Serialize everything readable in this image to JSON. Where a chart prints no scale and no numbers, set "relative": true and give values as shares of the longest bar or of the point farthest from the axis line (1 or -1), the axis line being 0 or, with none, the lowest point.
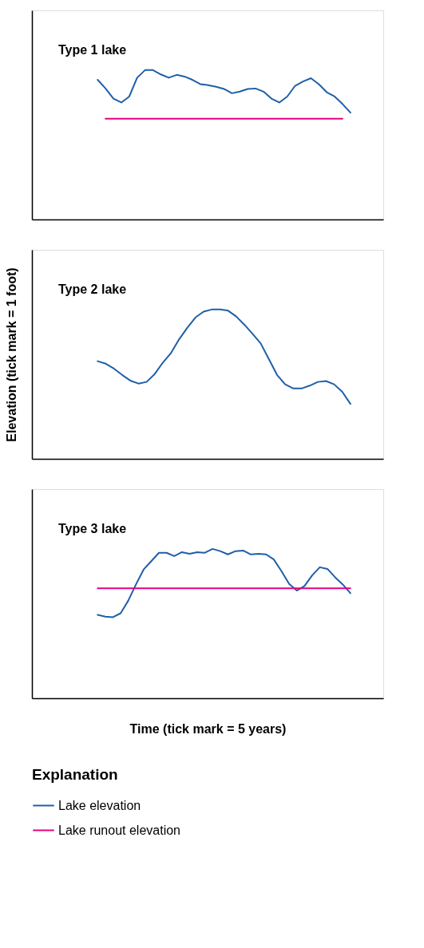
{
  "chart_data": [
    {
      "type": "line",
      "title": "Type 1 lake",
      "relative": true,
      "categories": [
        null,
        null,
        null,
        null,
        null,
        null,
        null,
        null,
        null,
        null,
        null,
        null,
        null,
        null,
        null,
        null,
        null,
        null,
        null,
        null,
        null,
        null,
        null,
        null,
        null,
        null,
        null,
        null,
        null,
        null,
        null,
        null,
        null
      ],
      "tick_labels": false,
      "line_style": "solid",
      "series": [
        {
          "color": "#1f5fa8",
          "values": [
            0.935,
            0.877,
            0.809,
            0.783,
            0.823,
            0.949,
            1,
            1,
            0.971,
            0.949,
            0.968,
            0.957,
            0.935,
            0.906,
            0.899,
            0.888,
            0.874,
            0.845,
            0.856,
            0.874,
            0.877,
            0.856,
            0.809,
            0.783,
            0.823,
            0.895,
            0.924,
            0.946,
            0.906,
            0.852,
            0.823,
            0.773,
            0.715
          ]
        },
        {
          "color": "#e6007e",
          "values": [
            null,
            0.675,
            0.675,
            0.675,
            0.675,
            0.675,
            0.675,
            0.675,
            0.675,
            0.675,
            0.675,
            0.675,
            0.675,
            0.675,
            0.675,
            0.675,
            0.675,
            0.675,
            0.675,
            0.675,
            0.675,
            0.675,
            0.675,
            0.675,
            0.675,
            0.675,
            0.675,
            0.675,
            0.675,
            0.675,
            0.675,
            0.675,
            null
          ]
        }
      ]
    },
    {
      "type": "line",
      "title": "Type 2 lake",
      "ylabel": "Elevation (tick mark = 1 foot)",
      "relative": true,
      "categories": [
        null,
        null,
        null,
        null,
        null,
        null,
        null,
        null,
        null,
        null,
        null,
        null,
        null,
        null,
        null,
        null,
        null,
        null,
        null,
        null,
        null,
        null,
        null,
        null,
        null,
        null,
        null,
        null,
        null,
        null,
        null,
        null
      ],
      "tick_labels": false,
      "line_style": "solid",
      "series": [
        {
          "color": "#1f5fa8",
          "values": [
            0.654,
            0.637,
            0.604,
            0.562,
            0.524,
            0.504,
            0.515,
            0.568,
            0.645,
            0.709,
            0.801,
            0.878,
            0.947,
            0.986,
            1,
            1,
            0.992,
            0.953,
            0.898,
            0.837,
            0.773,
            0.668,
            0.562,
            0.499,
            0.471,
            0.471,
            0.49,
            0.515,
            0.521,
            0.499,
            0.449,
            0.368
          ]
        }
      ]
    },
    {
      "type": "line",
      "title": "Type 3 lake",
      "xlabel": "Time (tick mark = 5 years)",
      "legend_title": "Explanation",
      "legend": "bottom",
      "relative": true,
      "categories": [
        null,
        null,
        null,
        null,
        null,
        null,
        null,
        null,
        null,
        null,
        null,
        null,
        null,
        null,
        null,
        null,
        null,
        null,
        null,
        null,
        null,
        null,
        null,
        null,
        null,
        null,
        null,
        null,
        null,
        null,
        null,
        null,
        null,
        null
      ],
      "tick_labels": false,
      "line_style": "solid",
      "series": [
        {
          "name": "Lake elevation",
          "color": "#1f5fa8",
          "values": [
            0.558,
            0.546,
            0.543,
            0.569,
            0.654,
            0.762,
            0.862,
            0.918,
            0.974,
            0.974,
            0.952,
            0.978,
            0.967,
            0.978,
            0.974,
            1,
            0.985,
            0.963,
            0.985,
            0.989,
            0.963,
            0.967,
            0.963,
            0.929,
            0.851,
            0.766,
            0.721,
            0.751,
            0.822,
            0.877,
            0.866,
            0.81,
            0.762,
            0.703
          ]
        },
        {
          "name": "Lake runout elevation",
          "color": "#e6007e",
          "values": [
            0.736,
            0.736,
            0.736,
            0.736,
            0.736,
            0.736,
            0.736,
            0.736,
            0.736,
            0.736,
            0.736,
            0.736,
            0.736,
            0.736,
            0.736,
            0.736,
            0.736,
            0.736,
            0.736,
            0.736,
            0.736,
            0.736,
            0.736,
            0.736,
            0.736,
            0.736,
            0.736,
            0.736,
            0.736,
            0.736,
            0.736,
            0.736,
            0.736,
            0.736
          ]
        }
      ]
    }
  ]
}
